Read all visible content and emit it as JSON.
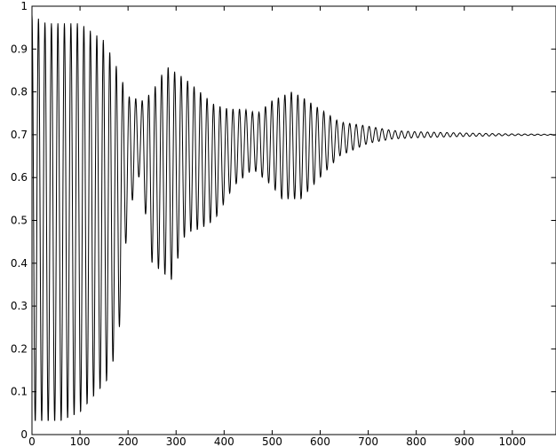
{
  "chart_data": {
    "type": "line",
    "title": "",
    "xlabel": "",
    "ylabel": "",
    "xlim": [
      0,
      1090
    ],
    "ylim": [
      0,
      1
    ],
    "grid": false,
    "legend": "none",
    "xticks": [
      0,
      100,
      200,
      300,
      400,
      500,
      600,
      700,
      800,
      900,
      1000
    ],
    "yticks": [
      0,
      0.1,
      0.2,
      0.3,
      0.4,
      0.5,
      0.6,
      0.7,
      0.8,
      0.9,
      1
    ],
    "xtick_labels": [
      "0",
      "100",
      "200",
      "300",
      "400",
      "500",
      "600",
      "700",
      "800",
      "900",
      "1000"
    ],
    "ytick_labels": [
      "0",
      "0.1",
      "0.2",
      "0.3",
      "0.4",
      "0.5",
      "0.6",
      "0.7",
      "0.8",
      "0.9",
      "1"
    ],
    "series": [
      {
        "color": "#000000",
        "period": 13.5,
        "offset": 0.7,
        "upper_envelope": [
          [
            0,
            0.98
          ],
          [
            30,
            0.96
          ],
          [
            60,
            0.96
          ],
          [
            100,
            0.96
          ],
          [
            150,
            0.92
          ],
          [
            180,
            0.85
          ],
          [
            200,
            0.79
          ],
          [
            230,
            0.78
          ],
          [
            250,
            0.8
          ],
          [
            280,
            0.86
          ],
          [
            320,
            0.83
          ],
          [
            350,
            0.8
          ],
          [
            380,
            0.77
          ],
          [
            410,
            0.76
          ],
          [
            440,
            0.76
          ],
          [
            470,
            0.75
          ],
          [
            500,
            0.78
          ],
          [
            540,
            0.8
          ],
          [
            560,
            0.79
          ],
          [
            600,
            0.76
          ],
          [
            640,
            0.73
          ],
          [
            700,
            0.72
          ],
          [
            750,
            0.71
          ],
          [
            800,
            0.707
          ],
          [
            900,
            0.704
          ],
          [
            1000,
            0.702
          ],
          [
            1090,
            0.701
          ]
        ],
        "lower_envelope": [
          [
            0,
            0.03
          ],
          [
            30,
            0.03
          ],
          [
            60,
            0.03
          ],
          [
            100,
            0.05
          ],
          [
            130,
            0.09
          ],
          [
            160,
            0.13
          ],
          [
            180,
            0.22
          ],
          [
            200,
            0.51
          ],
          [
            225,
            0.61
          ],
          [
            250,
            0.4
          ],
          [
            290,
            0.36
          ],
          [
            320,
            0.47
          ],
          [
            350,
            0.48
          ],
          [
            380,
            0.5
          ],
          [
            420,
            0.58
          ],
          [
            460,
            0.62
          ],
          [
            500,
            0.58
          ],
          [
            520,
            0.55
          ],
          [
            560,
            0.55
          ],
          [
            600,
            0.6
          ],
          [
            640,
            0.65
          ],
          [
            700,
            0.68
          ],
          [
            750,
            0.69
          ],
          [
            800,
            0.693
          ],
          [
            900,
            0.696
          ],
          [
            1000,
            0.698
          ],
          [
            1090,
            0.699
          ]
        ]
      }
    ]
  }
}
